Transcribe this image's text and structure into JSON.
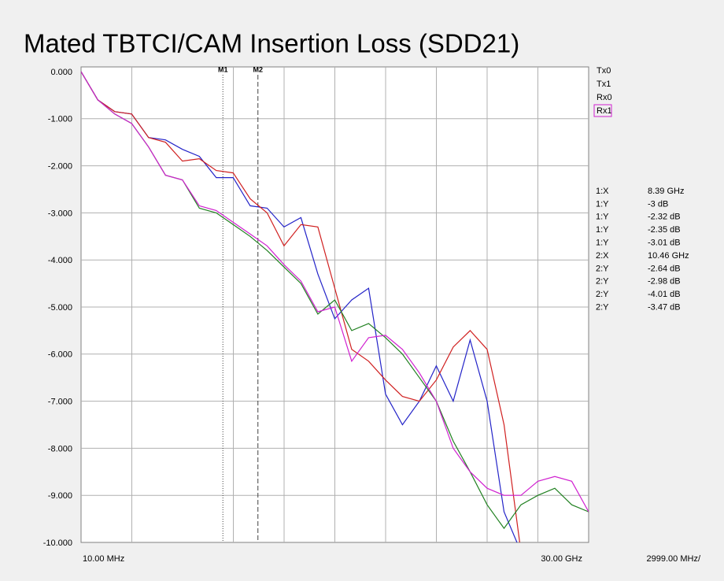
{
  "chart_data": {
    "type": "line",
    "title": "Mated TBTCI/CAM Insertion Loss (SDD21)",
    "x": [
      0.01,
      1,
      2,
      3,
      4,
      5,
      6,
      7,
      8,
      9,
      10,
      11,
      12,
      13,
      14,
      15,
      16,
      17,
      18,
      19,
      20,
      21,
      22,
      23,
      24,
      25,
      26,
      27,
      28,
      29,
      30
    ],
    "xlim": [
      0.01,
      30
    ],
    "xticks": [
      {
        "value": 0.01,
        "label": "10.00 MHz"
      },
      {
        "value": 30,
        "label": "30.00 GHz"
      }
    ],
    "x_scale_per_div": {
      "value": 2.999,
      "label": "2999.00 MHz/"
    },
    "ylim": [
      -10,
      0
    ],
    "yticks": [
      {
        "value": 0,
        "label": "0.000"
      },
      {
        "value": -1,
        "label": "-1.000"
      },
      {
        "value": -2,
        "label": "-2.000"
      },
      {
        "value": -3,
        "label": "-3.000"
      },
      {
        "value": -4,
        "label": "-4.000"
      },
      {
        "value": -5,
        "label": "-5.000"
      },
      {
        "value": -6,
        "label": "-6.000"
      },
      {
        "value": -7,
        "label": "-7.000"
      },
      {
        "value": -8,
        "label": "-8.000"
      },
      {
        "value": -9,
        "label": "-9.000"
      },
      {
        "value": -10,
        "label": "-10.000"
      }
    ],
    "grid": true,
    "series": [
      {
        "name": "Tx0",
        "color": "#2323c8",
        "values": [
          0,
          -0.6,
          -0.85,
          -0.9,
          -1.4,
          -1.45,
          -1.65,
          -1.8,
          -2.25,
          -2.25,
          -2.85,
          -2.9,
          -3.3,
          -3.1,
          -4.3,
          -5.25,
          -4.85,
          -4.6,
          -6.85,
          -7.5,
          -7.0,
          -6.25,
          -7.0,
          -5.7,
          -7.0,
          -9.35,
          -10.2,
          null,
          null,
          null,
          null
        ]
      },
      {
        "name": "Tx1",
        "color": "#d02020",
        "values": [
          0,
          -0.6,
          -0.85,
          -0.9,
          -1.4,
          -1.5,
          -1.9,
          -1.85,
          -2.1,
          -2.15,
          -2.7,
          -3.0,
          -3.7,
          -3.25,
          -3.3,
          -4.6,
          -5.9,
          -6.15,
          -6.55,
          -6.9,
          -7.0,
          -6.55,
          -5.85,
          -5.5,
          -5.9,
          -7.5,
          -10.2,
          null,
          null,
          null,
          null
        ]
      },
      {
        "name": "Rx0",
        "color": "#208020",
        "values": [
          0,
          -0.6,
          -0.9,
          -1.1,
          -1.6,
          -2.2,
          -2.3,
          -2.9,
          -3.0,
          -3.25,
          -3.5,
          -3.8,
          -4.15,
          -4.5,
          -5.15,
          -4.85,
          -5.5,
          -5.35,
          -5.65,
          -6.0,
          -6.5,
          -7.0,
          -7.85,
          -8.5,
          -9.2,
          -9.7,
          -9.2,
          -9.0,
          -8.85,
          -9.2,
          -9.35
        ]
      },
      {
        "name": "Rx1",
        "color": "#d020d0",
        "values": [
          0,
          -0.6,
          -0.9,
          -1.1,
          -1.6,
          -2.2,
          -2.3,
          -2.85,
          -2.95,
          -3.2,
          -3.45,
          -3.7,
          -4.1,
          -4.45,
          -5.1,
          -5.0,
          -6.15,
          -5.65,
          -5.6,
          -5.9,
          -6.4,
          -7.0,
          -8.0,
          -8.5,
          -8.85,
          -9.0,
          -9.0,
          -8.7,
          -8.6,
          -8.7,
          -9.35
        ]
      }
    ],
    "markers": [
      {
        "name": "M1",
        "x": 8.39
      },
      {
        "name": "M2",
        "x": 10.46
      }
    ],
    "readouts": [
      {
        "label": "1:X",
        "value": "8.39 GHz",
        "color": "#000000"
      },
      {
        "label": "1:Y",
        "value": "-3 dB",
        "color": "#d020d0"
      },
      {
        "label": "1:Y",
        "value": "-2.32 dB",
        "color": "#2323c8"
      },
      {
        "label": "1:Y",
        "value": "-2.35 dB",
        "color": "#d02020"
      },
      {
        "label": "1:Y",
        "value": "-3.01 dB",
        "color": "#208020"
      },
      {
        "label": "2:X",
        "value": "10.46 GHz",
        "color": "#000000"
      },
      {
        "label": "2:Y",
        "value": "-2.64 dB",
        "color": "#2323c8"
      },
      {
        "label": "2:Y",
        "value": "-2.98 dB",
        "color": "#d02020"
      },
      {
        "label": "2:Y",
        "value": "-4.01 dB",
        "color": "#208020"
      },
      {
        "label": "2:Y",
        "value": "-3.47 dB",
        "color": "#d020d0"
      }
    ]
  }
}
